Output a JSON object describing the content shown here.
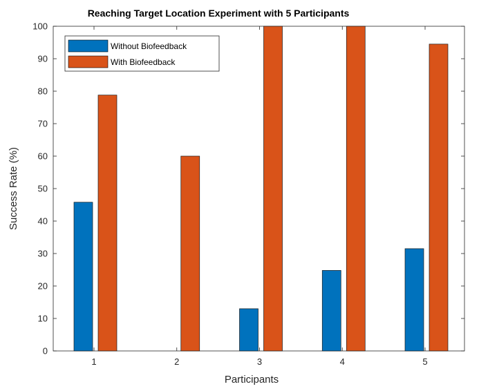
{
  "chart_data": {
    "type": "bar",
    "title": "Reaching Target Location Experiment with 5 Participants",
    "xlabel": "Participants",
    "ylabel": "Success Rate (%)",
    "categories": [
      "1",
      "2",
      "3",
      "4",
      "5"
    ],
    "ylim": [
      0,
      100
    ],
    "yticks": [
      "0",
      "10",
      "20",
      "30",
      "40",
      "50",
      "60",
      "70",
      "80",
      "90",
      "100"
    ],
    "legend_position": "top-left",
    "series": [
      {
        "name": "Without Biofeedback",
        "color": "#0072BD",
        "values": [
          45.8,
          0,
          13,
          24.8,
          31.5
        ]
      },
      {
        "name": "With Biofeedback",
        "color": "#D95319",
        "values": [
          78.8,
          60,
          100,
          100,
          94.5
        ]
      }
    ]
  }
}
